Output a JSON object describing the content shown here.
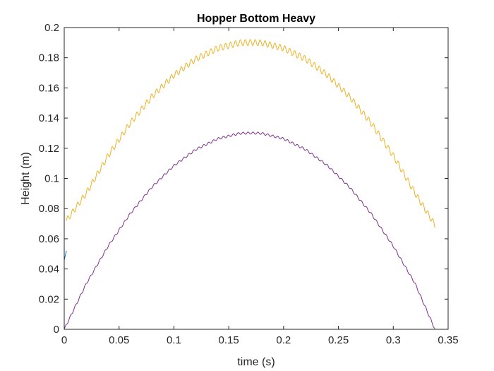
{
  "chart_data": {
    "type": "line",
    "title": "Hopper Bottom Heavy",
    "xlabel": "time (s)",
    "ylabel": "Height (m)",
    "xlim": [
      0,
      0.35
    ],
    "ylim": [
      0,
      0.2
    ],
    "xticks": [
      0,
      0.05,
      0.1,
      0.15,
      0.2,
      0.25,
      0.3,
      0.35
    ],
    "xtick_labels": [
      "0",
      "0.05",
      "0.1",
      "0.15",
      "0.2",
      "0.25",
      "0.3",
      "0.35"
    ],
    "yticks": [
      0,
      0.02,
      0.04,
      0.06,
      0.08,
      0.1,
      0.12,
      0.14,
      0.16,
      0.18,
      0.2
    ],
    "ytick_labels": [
      "0",
      "0.02",
      "0.04",
      "0.06",
      "0.08",
      "0.1",
      "0.12",
      "0.14",
      "0.16",
      "0.18",
      "0.2"
    ],
    "grid": false,
    "box": true,
    "series": [
      {
        "color": "#0072BD",
        "x": [
          0,
          0.001,
          0.002
        ],
        "y": [
          0.046,
          0.049,
          0.052
        ]
      },
      {
        "color": "#EDB120",
        "x": [
          0.002,
          0.02,
          0.04,
          0.06,
          0.08,
          0.1,
          0.12,
          0.14,
          0.16,
          0.17,
          0.18,
          0.2,
          0.22,
          0.24,
          0.26,
          0.28,
          0.3,
          0.32,
          0.338
        ],
        "y": [
          0.052,
          0.0701,
          0.0951,
          0.1165,
          0.1343,
          0.1485,
          0.1592,
          0.1663,
          0.1699,
          0.1701,
          0.1699,
          0.1663,
          0.1592,
          0.1485,
          0.1343,
          0.1165,
          0.0951,
          0.0701,
          0.049
        ],
        "ripple_amplitude": 0.002,
        "ripple_period": 0.0045,
        "offset": 0.02
      },
      {
        "color": "#7E2F8E",
        "x": [
          0,
          0.02,
          0.04,
          0.06,
          0.08,
          0.1,
          0.12,
          0.14,
          0.16,
          0.17,
          0.18,
          0.2,
          0.22,
          0.24,
          0.26,
          0.28,
          0.3,
          0.32,
          0.338
        ],
        "y": [
          0,
          0.0301,
          0.0551,
          0.0765,
          0.0943,
          0.1085,
          0.1192,
          0.1263,
          0.1299,
          0.1301,
          0.1299,
          0.1263,
          0.1192,
          0.1085,
          0.0943,
          0.0765,
          0.0551,
          0.0301,
          0.0
        ],
        "ripple_amplitude": 0.0007,
        "ripple_period": 0.0045,
        "offset": 0.0
      }
    ]
  }
}
